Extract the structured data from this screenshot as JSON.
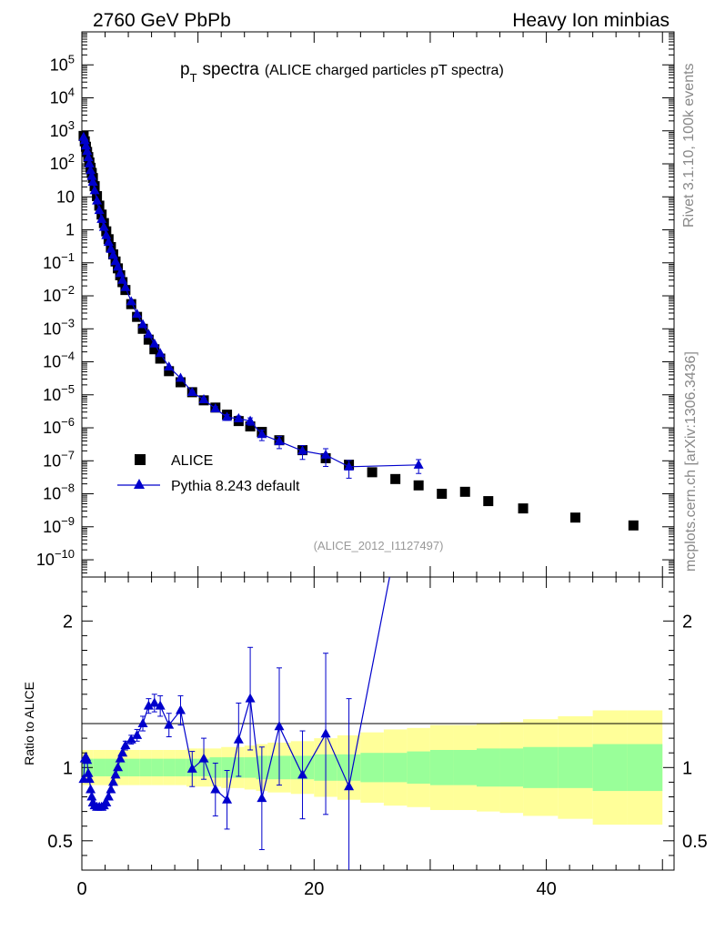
{
  "header": {
    "left": "2760 GeV PbPb",
    "right": "Heavy Ion minbias"
  },
  "side": {
    "rivet": "Rivet 3.1.10,  100k events",
    "mcplots": "mcplots.cern.ch [arXiv:1306.3436]"
  },
  "chart_data": {
    "type": "scatter",
    "title_main": "p",
    "title_sub": "T",
    "title_word": "spectra",
    "title_paren": "(ALICE charged particles pT spectra)",
    "analysis": "(ALICE_2012_I1127497)",
    "ylabel_ratio": "Ratio to ALICE",
    "xlim": [
      0,
      51
    ],
    "ylim_log": [
      3e-11,
      1000000.0
    ],
    "ratio_ylim": [
      0.3,
      2.3
    ],
    "log_y": true,
    "x_ticks": [
      "0",
      "20",
      "40"
    ],
    "y_ticks": [
      {
        "v": 100000.0,
        "b": "10",
        "e": "5"
      },
      {
        "v": 10000.0,
        "b": "10",
        "e": "4"
      },
      {
        "v": 1000.0,
        "b": "10",
        "e": "3"
      },
      {
        "v": 100.0,
        "b": "10",
        "e": "2"
      },
      {
        "v": 10,
        "b": "10",
        "e": ""
      },
      {
        "v": 1,
        "b": "1",
        "e": ""
      },
      {
        "v": 0.1,
        "b": "10",
        "e": "−1"
      },
      {
        "v": 0.01,
        "b": "10",
        "e": "−2"
      },
      {
        "v": 0.001,
        "b": "10",
        "e": "−3"
      },
      {
        "v": 0.0001,
        "b": "10",
        "e": "−4"
      },
      {
        "v": 1e-05,
        "b": "10",
        "e": "−5"
      },
      {
        "v": 1e-06,
        "b": "10",
        "e": "−6"
      },
      {
        "v": 1e-07,
        "b": "10",
        "e": "−7"
      },
      {
        "v": 1e-08,
        "b": "10",
        "e": "−8"
      },
      {
        "v": 1e-09,
        "b": "10",
        "e": "−9"
      },
      {
        "v": 1e-10,
        "b": "10",
        "e": "−10"
      }
    ],
    "ratio_ticks": [
      {
        "v": 0.5,
        "label": "0.5"
      },
      {
        "v": 1,
        "label": "1"
      },
      {
        "v": 2,
        "label": "2"
      }
    ],
    "legend_position": "bottom-left",
    "series": [
      {
        "name": "ALICE",
        "color": "#000000",
        "marker": "square",
        "x": [
          0.15,
          0.25,
          0.35,
          0.45,
          0.55,
          0.65,
          0.75,
          0.85,
          0.95,
          1.1,
          1.3,
          1.5,
          1.7,
          1.9,
          2.1,
          2.3,
          2.5,
          2.7,
          2.9,
          3.1,
          3.3,
          3.5,
          3.75,
          4.25,
          4.75,
          5.25,
          5.75,
          6.25,
          6.75,
          7.5,
          8.5,
          9.5,
          10.5,
          11.5,
          12.5,
          13.5,
          14.5,
          15.5,
          17,
          19,
          21,
          23,
          25,
          27,
          29,
          31,
          33,
          35,
          38,
          42.5,
          47.5
        ],
        "y": [
          700,
          480,
          330,
          230,
          160,
          110,
          76,
          53,
          37,
          21,
          10.5,
          5.4,
          2.9,
          1.6,
          0.9,
          0.52,
          0.3,
          0.18,
          0.11,
          0.068,
          0.042,
          0.026,
          0.015,
          0.0056,
          0.0023,
          0.001,
          0.00047,
          0.00024,
          0.000125,
          5.2e-05,
          2.4e-05,
          1.2e-05,
          6.8e-06,
          4.1e-06,
          2.5e-06,
          1.6e-06,
          1.1e-06,
          7.5e-07,
          4.2e-07,
          2.1e-07,
          1.2e-07,
          7.6e-08,
          4.5e-08,
          2.8e-08,
          1.8e-08,
          1e-08,
          1.15e-08,
          6e-09,
          3.6e-09,
          1.9e-09,
          1.1e-09
        ]
      },
      {
        "name": "Pythia 8.243 default",
        "color": "#0000cc",
        "marker": "triangle",
        "x": [
          0.15,
          0.25,
          0.35,
          0.45,
          0.55,
          0.65,
          0.75,
          0.85,
          0.95,
          1.1,
          1.3,
          1.5,
          1.7,
          1.9,
          2.1,
          2.3,
          2.5,
          2.7,
          2.9,
          3.1,
          3.3,
          3.5,
          3.75,
          4.25,
          4.75,
          5.25,
          5.75,
          6.25,
          6.75,
          7.5,
          8.5,
          9.5,
          10.5,
          11.5,
          12.5,
          13.5,
          14.5,
          15.5,
          17,
          19,
          21,
          23,
          29
        ],
        "y": [
          640,
          510,
          350,
          240,
          155,
          100,
          63,
          42,
          28,
          15.5,
          7.6,
          3.9,
          2.1,
          1.2,
          0.68,
          0.42,
          0.26,
          0.17,
          0.11,
          0.075,
          0.048,
          0.03,
          0.018,
          0.0067,
          0.0028,
          0.00135,
          0.00068,
          0.00035,
          0.00018,
          7e-05,
          3.2e-05,
          1.19e-05,
          7.2e-06,
          3.8e-06,
          2.1e-06,
          1.9e-06,
          1.6e-06,
          6.3e-07,
          3.9e-07,
          2e-07,
          1.5e-07,
          6.6e-08,
          7.5e-08
        ],
        "yerr": [
          0,
          0,
          0,
          0,
          0,
          0,
          0,
          0,
          0,
          0,
          0,
          0,
          0,
          0,
          0,
          0,
          0,
          0,
          0,
          0,
          0,
          0,
          0,
          0,
          0,
          0,
          0,
          0,
          0,
          0,
          0,
          0.1,
          0.1,
          0.15,
          0.2,
          0.2,
          0.25,
          0.35,
          0.4,
          0.45,
          0.55,
          0.55,
          0.45
        ]
      }
    ],
    "ratio": {
      "x": [
        0.15,
        0.25,
        0.35,
        0.45,
        0.55,
        0.65,
        0.75,
        0.85,
        0.95,
        1.1,
        1.3,
        1.5,
        1.7,
        1.9,
        2.1,
        2.3,
        2.5,
        2.7,
        2.9,
        3.1,
        3.3,
        3.5,
        3.75,
        4.25,
        4.75,
        5.25,
        5.75,
        6.25,
        6.75,
        7.5,
        8.5,
        9.5,
        10.5,
        11.5,
        12.5,
        13.5,
        14.5,
        15.5,
        17,
        19,
        21,
        23
      ],
      "y": [
        0.92,
        1.06,
        1.07,
        1.05,
        0.96,
        0.92,
        0.85,
        0.8,
        0.76,
        0.74,
        0.73,
        0.73,
        0.73,
        0.74,
        0.76,
        0.8,
        0.85,
        0.9,
        0.95,
        1.0,
        1.06,
        1.1,
        1.15,
        1.19,
        1.22,
        1.3,
        1.42,
        1.44,
        1.42,
        1.29,
        1.39,
        0.99,
        1.06,
        0.85,
        0.78,
        1.19,
        1.47,
        0.79,
        1.28,
        0.95,
        1.23,
        0.87
      ],
      "err": [
        0.01,
        0.01,
        0.01,
        0.01,
        0.01,
        0.01,
        0.01,
        0.01,
        0.01,
        0.01,
        0.01,
        0.01,
        0.01,
        0.01,
        0.01,
        0.01,
        0.01,
        0.01,
        0.01,
        0.02,
        0.02,
        0.02,
        0.03,
        0.03,
        0.04,
        0.05,
        0.05,
        0.06,
        0.07,
        0.08,
        0.1,
        0.12,
        0.14,
        0.18,
        0.2,
        0.25,
        0.35,
        0.35,
        0.4,
        0.3,
        0.55,
        0.6
      ],
      "line_to": [
        26.5,
        2.3
      ],
      "band_edges": [
        0,
        1,
        2,
        3,
        4,
        5,
        6,
        7,
        8,
        9,
        10,
        11,
        12,
        13,
        14,
        15,
        16,
        18,
        20,
        22,
        24,
        26,
        28,
        30,
        32,
        34,
        36,
        38,
        41,
        44,
        47,
        50
      ],
      "band_green": [
        0.06,
        0.06,
        0.06,
        0.06,
        0.06,
        0.06,
        0.06,
        0.06,
        0.06,
        0.06,
        0.06,
        0.07,
        0.07,
        0.07,
        0.07,
        0.08,
        0.08,
        0.08,
        0.09,
        0.09,
        0.1,
        0.1,
        0.11,
        0.12,
        0.12,
        0.13,
        0.13,
        0.14,
        0.14,
        0.16,
        0.16
      ],
      "band_yellow": [
        0.12,
        0.12,
        0.12,
        0.12,
        0.12,
        0.12,
        0.12,
        0.12,
        0.12,
        0.13,
        0.13,
        0.13,
        0.14,
        0.14,
        0.15,
        0.16,
        0.17,
        0.18,
        0.2,
        0.22,
        0.24,
        0.26,
        0.27,
        0.29,
        0.29,
        0.3,
        0.31,
        0.33,
        0.35,
        0.39,
        0.39
      ]
    }
  }
}
